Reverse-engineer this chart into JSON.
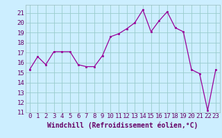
{
  "x": [
    0,
    1,
    2,
    3,
    4,
    5,
    6,
    7,
    8,
    9,
    10,
    11,
    12,
    13,
    14,
    15,
    16,
    17,
    18,
    19,
    20,
    21,
    22,
    23
  ],
  "y": [
    15.3,
    16.6,
    15.8,
    17.1,
    17.1,
    17.1,
    15.8,
    15.6,
    15.6,
    16.7,
    18.6,
    18.9,
    19.4,
    20.0,
    21.3,
    19.1,
    20.2,
    21.1,
    19.5,
    19.1,
    15.3,
    14.9,
    11.2,
    15.3
  ],
  "line_color": "#990099",
  "marker": "s",
  "marker_size": 2,
  "bg_color": "#cceeff",
  "grid_color": "#99cccc",
  "xlabel": "Windchill (Refroidissement éolien,°C)",
  "xlabel_fontsize": 7,
  "tick_fontsize": 6.5,
  "ylim": [
    11,
    21.8
  ],
  "yticks": [
    11,
    12,
    13,
    14,
    15,
    16,
    17,
    18,
    19,
    20,
    21
  ],
  "xlim": [
    -0.5,
    23.5
  ],
  "xticks": [
    0,
    1,
    2,
    3,
    4,
    5,
    6,
    7,
    8,
    9,
    10,
    11,
    12,
    13,
    14,
    15,
    16,
    17,
    18,
    19,
    20,
    21,
    22,
    23
  ],
  "tick_color": "#660066",
  "spine_color": "#99bbbb"
}
